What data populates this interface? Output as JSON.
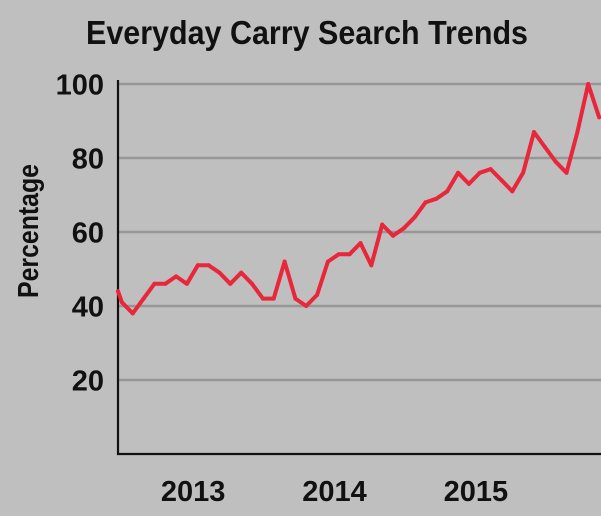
{
  "chart_data": {
    "type": "line",
    "title": "Everyday Carry Search Trends",
    "ylabel": "Percentage",
    "xlim": [
      "2012-06-21",
      "2015-11-20"
    ],
    "ylim": [
      0,
      100
    ],
    "x_ticks": [
      "2013",
      "2014",
      "2015"
    ],
    "y_ticks": [
      20,
      40,
      60,
      80,
      100
    ],
    "grid": true,
    "legend": "none",
    "colors": {
      "background": "#bfbfbf",
      "line": "#e8273b",
      "grid": "#979797",
      "axis": "#111111",
      "text": "#111111"
    },
    "series": [
      {
        "x": [
          "2012-06-21",
          "2012-07-01",
          "2012-07-29",
          "2012-08-26",
          "2012-09-23",
          "2012-10-21",
          "2012-11-18",
          "2012-12-16",
          "2013-01-13",
          "2013-02-10",
          "2013-03-10",
          "2013-04-07",
          "2013-05-05",
          "2013-06-02",
          "2013-06-30",
          "2013-07-28",
          "2013-08-25",
          "2013-09-22",
          "2013-10-20",
          "2013-11-17",
          "2013-12-15",
          "2014-01-12",
          "2014-02-09",
          "2014-03-09",
          "2014-04-06",
          "2014-05-04",
          "2014-06-01",
          "2014-06-29",
          "2014-07-27",
          "2014-08-24",
          "2014-09-21",
          "2014-10-19",
          "2014-11-16",
          "2014-12-14",
          "2015-01-11",
          "2015-02-08",
          "2015-03-08",
          "2015-04-05",
          "2015-05-03",
          "2015-05-31",
          "2015-06-28",
          "2015-07-26",
          "2015-08-23",
          "2015-09-20",
          "2015-10-18",
          "2015-11-15"
        ],
        "y": [
          44,
          41,
          38,
          42,
          46,
          46,
          48,
          46,
          51,
          51,
          49,
          46,
          49,
          46,
          42,
          42,
          52,
          42,
          40,
          43,
          52,
          54,
          54,
          57,
          51,
          62,
          59,
          61,
          64,
          68,
          69,
          71,
          76,
          73,
          76,
          77,
          74,
          71,
          76,
          87,
          83,
          79,
          76,
          87,
          100,
          91
        ]
      }
    ]
  }
}
